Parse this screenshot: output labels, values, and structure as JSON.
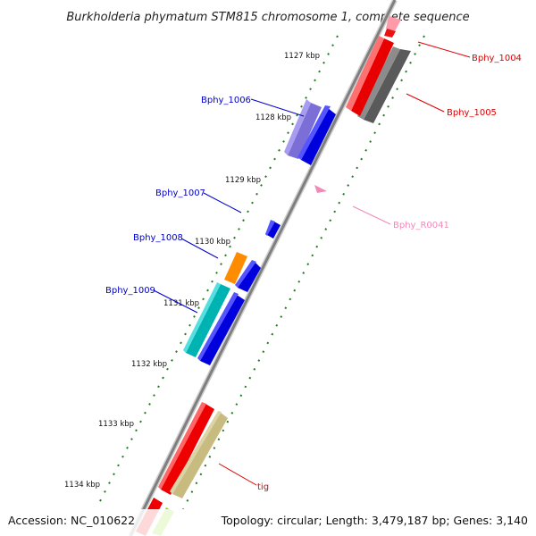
{
  "title": "Burkholderia phymatum STM815 chromosome 1, complete sequence",
  "footer": {
    "accession": "Accession: NC_010622",
    "summary": "Topology: circular; Length: 3,479,187 bp; Genes: 3,140"
  },
  "colors": {
    "backbone": "#8a8a8a",
    "tick": "#1f7a1f",
    "label_blue": "#0000cc",
    "label_red": "#dd0000",
    "label_pink": "#f28ab8"
  },
  "ticks": [
    {
      "label": "1127 kbp",
      "pos": 1127
    },
    {
      "label": "1128 kbp",
      "pos": 1128
    },
    {
      "label": "1129 kbp",
      "pos": 1129
    },
    {
      "label": "1130 kbp",
      "pos": 1130
    },
    {
      "label": "1131 kbp",
      "pos": 1131
    },
    {
      "label": "1132 kbp",
      "pos": 1132
    },
    {
      "label": "1133 kbp",
      "pos": 1133
    },
    {
      "label": "1134 kbp",
      "pos": 1134
    }
  ],
  "gene_labels": [
    {
      "name": "Bphy_1004",
      "color": "#dd0000"
    },
    {
      "name": "Bphy_1005",
      "color": "#dd0000"
    },
    {
      "name": "Bphy_1006",
      "color": "#0000cc"
    },
    {
      "name": "Bphy_1007",
      "color": "#0000cc"
    },
    {
      "name": "Bphy_R0041",
      "color": "#f28ab8"
    },
    {
      "name": "Bphy_1008",
      "color": "#0000cc"
    },
    {
      "name": "Bphy_1009",
      "color": "#0000cc"
    },
    {
      "name": "tig",
      "color": "#dd0000"
    }
  ]
}
